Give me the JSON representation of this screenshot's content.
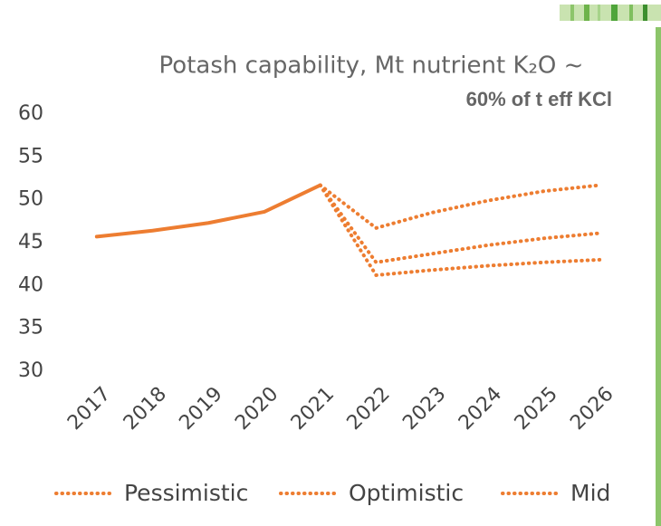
{
  "chart_data": {
    "type": "line",
    "title": "Potash capability, Mt nutrient K₂O ~",
    "subtitle": "60% of t eff KCl",
    "categories": [
      "2017",
      "2018",
      "2019",
      "2020",
      "2021",
      "2022",
      "2023",
      "2024",
      "2025",
      "2026"
    ],
    "series": [
      {
        "color": "#ed7d31",
        "dashed": false,
        "values": [
          45.7,
          46.4,
          47.3,
          48.6,
          51.7,
          null,
          null,
          null,
          null,
          null
        ]
      },
      {
        "name": "Pessimistic",
        "color": "#ed7d31",
        "dashed": true,
        "values": [
          null,
          null,
          null,
          null,
          51.7,
          41.2,
          41.8,
          42.3,
          42.7,
          43.0
        ]
      },
      {
        "name": "Optimistic",
        "color": "#ed7d31",
        "dashed": true,
        "values": [
          null,
          null,
          null,
          null,
          51.7,
          46.7,
          48.5,
          49.9,
          51.0,
          51.7
        ]
      },
      {
        "name": "Mid",
        "color": "#ed7d31",
        "dashed": true,
        "values": [
          null,
          null,
          null,
          null,
          51.7,
          42.7,
          43.7,
          44.7,
          45.5,
          46.1
        ]
      }
    ],
    "ylim": [
      30,
      60
    ],
    "yticks": [
      30,
      35,
      40,
      45,
      50,
      55,
      60
    ],
    "grid": false,
    "legend": "bottom"
  }
}
